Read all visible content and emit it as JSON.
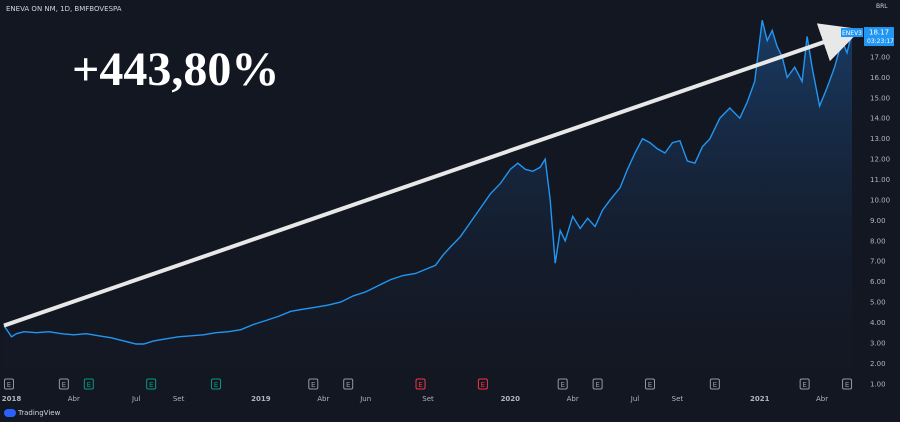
{
  "header": {
    "title": "ENEVA ON NM, 1D, BMFBOVESPA"
  },
  "annotation": {
    "gain_text": "+443,80%"
  },
  "price_label": {
    "ticker": "ENEV3",
    "value": "18.17",
    "countdown": "03:23:17",
    "currency": "BRL"
  },
  "branding": {
    "name": "TradingView"
  },
  "colors": {
    "background": "#131722",
    "line": "#2196f3",
    "axis_text": "#b2b5be",
    "arrow": "#e8e8e8",
    "label_bg": "#2196f3"
  },
  "chart_data": {
    "type": "area",
    "title": "ENEVA ON NM, 1D, BMFBOVESPA",
    "xlabel": "",
    "ylabel": "",
    "yscale": "linear",
    "ylim": [
      0.5,
      19.2
    ],
    "xlim": [
      2017.97,
      2021.41
    ],
    "grid": false,
    "y_ticks": [
      "1.00",
      "2.00",
      "3.00",
      "4.00",
      "5.00",
      "6.00",
      "7.00",
      "8.00",
      "9.00",
      "10.00",
      "11.00",
      "12.00",
      "13.00",
      "14.00",
      "15.00",
      "16.00",
      "17.00"
    ],
    "x_ticks": [
      {
        "label": "2018",
        "x": 2018.0
      },
      {
        "label": "Abr",
        "x": 2018.25
      },
      {
        "label": "Jul",
        "x": 2018.5
      },
      {
        "label": "Set",
        "x": 2018.67
      },
      {
        "label": "2019",
        "x": 2019.0
      },
      {
        "label": "Abr",
        "x": 2019.25
      },
      {
        "label": "Jun",
        "x": 2019.42
      },
      {
        "label": "Set",
        "x": 2019.67
      },
      {
        "label": "2020",
        "x": 2020.0
      },
      {
        "label": "Abr",
        "x": 2020.25
      },
      {
        "label": "Jul",
        "x": 2020.5
      },
      {
        "label": "Set",
        "x": 2020.67
      },
      {
        "label": "2021",
        "x": 2021.0
      },
      {
        "label": "Abr",
        "x": 2021.25
      }
    ],
    "events": [
      {
        "label": "E",
        "x": 2017.99,
        "type": "earnings"
      },
      {
        "label": "E",
        "x": 2018.21,
        "type": "earnings"
      },
      {
        "label": "E",
        "x": 2018.31,
        "type": "dividend"
      },
      {
        "label": "E",
        "x": 2018.56,
        "type": "dividend"
      },
      {
        "label": "E",
        "x": 2018.82,
        "type": "dividend"
      },
      {
        "label": "E",
        "x": 2019.21,
        "type": "earnings"
      },
      {
        "label": "E",
        "x": 2019.35,
        "type": "earnings"
      },
      {
        "label": "E",
        "x": 2019.64,
        "type": "split"
      },
      {
        "label": "E",
        "x": 2019.89,
        "type": "split"
      },
      {
        "label": "E",
        "x": 2020.21,
        "type": "earnings"
      },
      {
        "label": "E",
        "x": 2020.35,
        "type": "earnings"
      },
      {
        "label": "E",
        "x": 2020.56,
        "type": "earnings"
      },
      {
        "label": "E",
        "x": 2020.82,
        "type": "earnings"
      },
      {
        "label": "E",
        "x": 2021.18,
        "type": "earnings"
      },
      {
        "label": "E",
        "x": 2021.35,
        "type": "earnings"
      }
    ],
    "series": [
      {
        "points": [
          [
            2017.97,
            3.85
          ],
          [
            2018.0,
            3.3
          ],
          [
            2018.02,
            3.45
          ],
          [
            2018.05,
            3.55
          ],
          [
            2018.1,
            3.5
          ],
          [
            2018.15,
            3.55
          ],
          [
            2018.2,
            3.45
          ],
          [
            2018.25,
            3.4
          ],
          [
            2018.3,
            3.45
          ],
          [
            2018.35,
            3.35
          ],
          [
            2018.4,
            3.25
          ],
          [
            2018.45,
            3.1
          ],
          [
            2018.5,
            2.95
          ],
          [
            2018.53,
            2.95
          ],
          [
            2018.57,
            3.1
          ],
          [
            2018.62,
            3.2
          ],
          [
            2018.67,
            3.3
          ],
          [
            2018.72,
            3.35
          ],
          [
            2018.77,
            3.4
          ],
          [
            2018.82,
            3.5
          ],
          [
            2018.87,
            3.55
          ],
          [
            2018.92,
            3.65
          ],
          [
            2018.97,
            3.9
          ],
          [
            2019.02,
            4.1
          ],
          [
            2019.07,
            4.3
          ],
          [
            2019.12,
            4.55
          ],
          [
            2019.17,
            4.65
          ],
          [
            2019.22,
            4.75
          ],
          [
            2019.27,
            4.85
          ],
          [
            2019.32,
            5.0
          ],
          [
            2019.37,
            5.3
          ],
          [
            2019.42,
            5.5
          ],
          [
            2019.47,
            5.8
          ],
          [
            2019.52,
            6.1
          ],
          [
            2019.57,
            6.3
          ],
          [
            2019.62,
            6.4
          ],
          [
            2019.66,
            6.6
          ],
          [
            2019.7,
            6.8
          ],
          [
            2019.73,
            7.3
          ],
          [
            2019.76,
            7.7
          ],
          [
            2019.8,
            8.2
          ],
          [
            2019.84,
            8.9
          ],
          [
            2019.88,
            9.6
          ],
          [
            2019.92,
            10.3
          ],
          [
            2019.96,
            10.8
          ],
          [
            2020.0,
            11.5
          ],
          [
            2020.03,
            11.8
          ],
          [
            2020.06,
            11.5
          ],
          [
            2020.09,
            11.4
          ],
          [
            2020.12,
            11.6
          ],
          [
            2020.14,
            12.0
          ],
          [
            2020.16,
            10.0
          ],
          [
            2020.18,
            6.9
          ],
          [
            2020.2,
            8.5
          ],
          [
            2020.22,
            8.0
          ],
          [
            2020.25,
            9.2
          ],
          [
            2020.28,
            8.6
          ],
          [
            2020.31,
            9.1
          ],
          [
            2020.34,
            8.7
          ],
          [
            2020.37,
            9.5
          ],
          [
            2020.4,
            10.0
          ],
          [
            2020.44,
            10.6
          ],
          [
            2020.47,
            11.5
          ],
          [
            2020.5,
            12.3
          ],
          [
            2020.53,
            13.0
          ],
          [
            2020.56,
            12.8
          ],
          [
            2020.59,
            12.5
          ],
          [
            2020.62,
            12.3
          ],
          [
            2020.65,
            12.8
          ],
          [
            2020.68,
            12.9
          ],
          [
            2020.71,
            11.9
          ],
          [
            2020.74,
            11.8
          ],
          [
            2020.77,
            12.6
          ],
          [
            2020.8,
            13.0
          ],
          [
            2020.84,
            14.0
          ],
          [
            2020.88,
            14.5
          ],
          [
            2020.92,
            14.0
          ],
          [
            2020.95,
            14.8
          ],
          [
            2020.98,
            15.8
          ],
          [
            2021.01,
            18.8
          ],
          [
            2021.03,
            17.8
          ],
          [
            2021.05,
            18.3
          ],
          [
            2021.07,
            17.5
          ],
          [
            2021.09,
            17.0
          ],
          [
            2021.11,
            16.0
          ],
          [
            2021.14,
            16.5
          ],
          [
            2021.17,
            15.8
          ],
          [
            2021.19,
            18.0
          ],
          [
            2021.21,
            16.5
          ],
          [
            2021.24,
            14.6
          ],
          [
            2021.27,
            15.5
          ],
          [
            2021.3,
            16.5
          ],
          [
            2021.33,
            17.8
          ],
          [
            2021.35,
            17.2
          ],
          [
            2021.37,
            18.2
          ]
        ]
      }
    ]
  }
}
